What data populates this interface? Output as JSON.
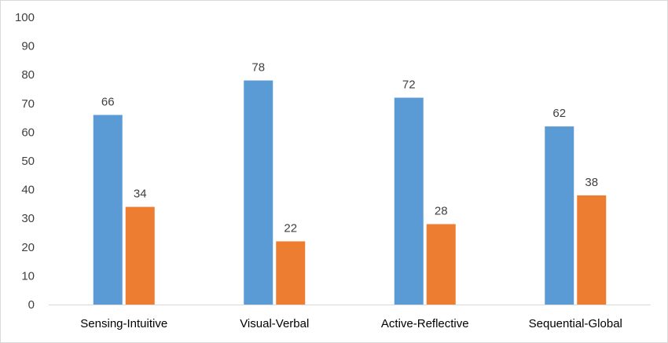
{
  "chart_data": {
    "type": "bar",
    "categories": [
      "Sensing-Intuitive",
      "Visual-Verbal",
      "Active-Reflective",
      "Sequential-Global"
    ],
    "series": [
      {
        "values": [
          66,
          78,
          72,
          62
        ],
        "color": "#5b9bd5"
      },
      {
        "values": [
          34,
          22,
          28,
          38
        ],
        "color": "#ed7d31"
      }
    ],
    "title": "",
    "xlabel": "",
    "ylabel": "",
    "ylim": [
      0,
      100
    ],
    "yticks": [
      0,
      10,
      20,
      30,
      40,
      50,
      60,
      70,
      80,
      90,
      100
    ],
    "data_labels": true,
    "grid": false,
    "legend": "none"
  }
}
